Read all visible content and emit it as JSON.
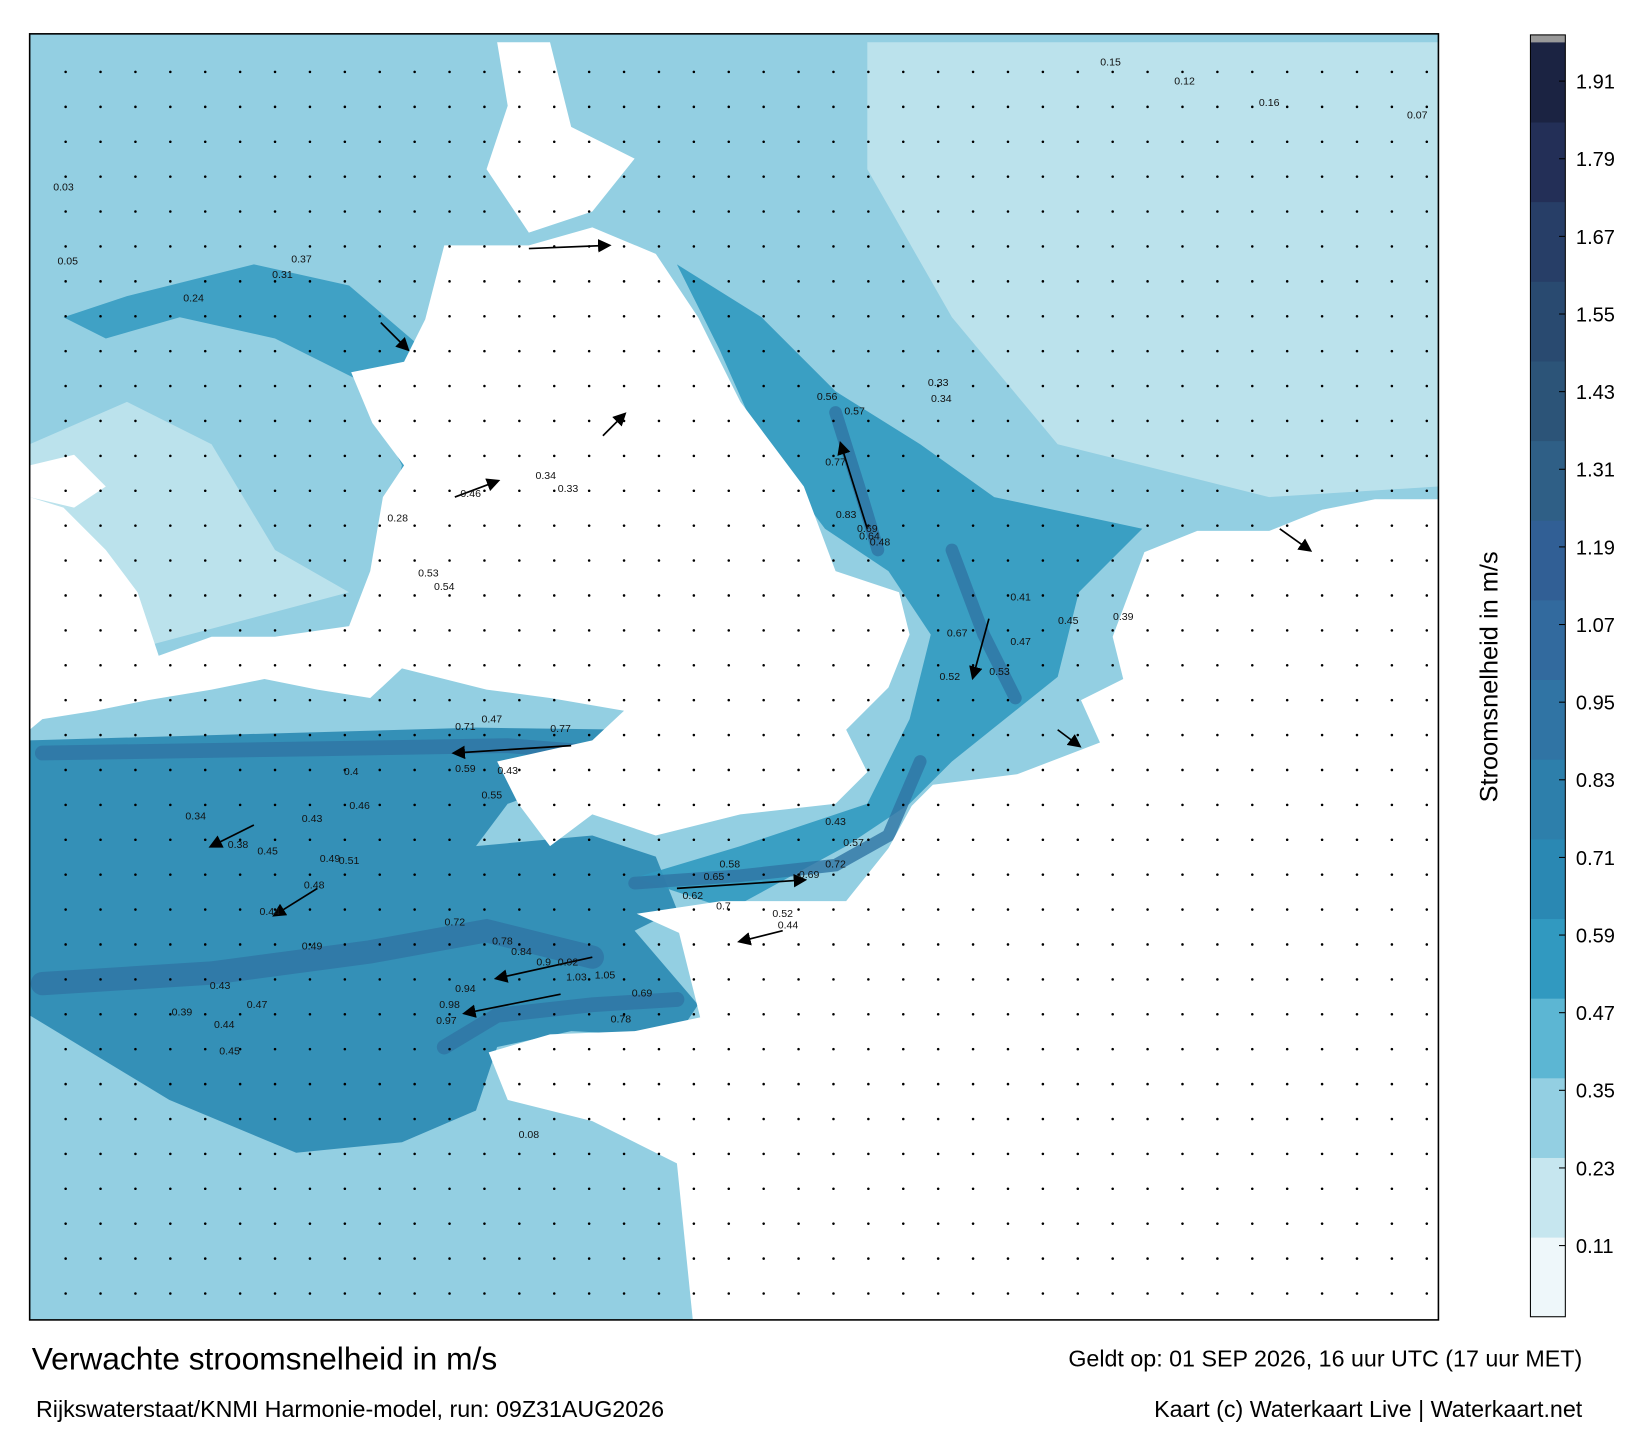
{
  "map": {
    "title": "Verwachte stroomsnelheid in m/s",
    "subtitle": "Rijkswaterstaat/KNMI Harmonie-model, run: 09Z31AUG2026",
    "valid_time": "Geldt op: 01 SEP 2026, 16 uur UTC (17 uur MET)",
    "credit": "Kaart (c) Waterkaart Live | Waterkaart.net",
    "colorbar": {
      "label": "Stroomsnelheid in m/s",
      "lim": [
        0,
        1.97
      ],
      "ticks": [
        0.11,
        0.23,
        0.35,
        0.47,
        0.59,
        0.71,
        0.83,
        0.95,
        1.07,
        1.19,
        1.31,
        1.43,
        1.55,
        1.67,
        1.79,
        1.91
      ],
      "colors": [
        "#eef7fa",
        "#c6e6ef",
        "#93cfe2",
        "#5cb6d3",
        "#3199c0",
        "#2a88b3",
        "#2d7fab",
        "#3074a4",
        "#326a9e",
        "#315f95",
        "#2f5f86",
        "#2c5478",
        "#294a70",
        "#273e67",
        "#232f57",
        "#1b2342"
      ]
    },
    "labels": [
      "0.71",
      "0.47",
      "0.77",
      "0.59",
      "0.55",
      "0.43",
      "0.34",
      "0.38",
      "0.45",
      "0.49",
      "0.51",
      "0.43",
      "0.46",
      "0.4",
      "0.44",
      "0.48",
      "0.49",
      "0.43",
      "0.47",
      "0.39",
      "0.44",
      "0.45",
      "0.72",
      "0.78",
      "0.84",
      "0.9",
      "0.92",
      "1.03",
      "1.05",
      "0.94",
      "0.98",
      "0.97",
      "0.69",
      "0.78",
      "0.65",
      "0.58",
      "0.69",
      "0.72",
      "0.52",
      "0.44",
      "0.62",
      "0.7",
      "0.43",
      "0.57",
      "0.69",
      "0.77",
      "0.83",
      "0.64",
      "0.48",
      "0.57",
      "0.56",
      "0.52",
      "0.53",
      "0.47",
      "0.67",
      "0.41",
      "0.45",
      "0.39",
      "0.33",
      "0.34",
      "0.46",
      "0.34",
      "0.33",
      "0.53",
      "0.54",
      "0.28",
      "0.37",
      "0.31",
      "0.24",
      "0.15",
      "0.12",
      "0.03",
      "0.05",
      "0.07",
      "0.16",
      "0.08"
    ]
  }
}
